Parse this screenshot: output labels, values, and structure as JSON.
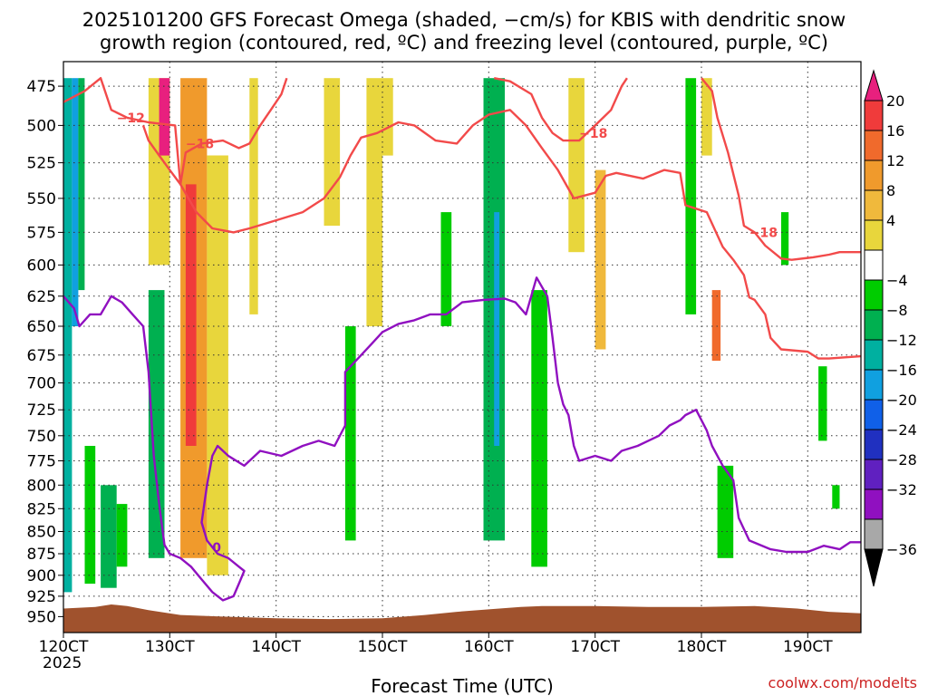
{
  "chart_data": {
    "type": "heatmap",
    "title_lines": [
      "2025101200 GFS Forecast Omega (shaded, −cm/s) for KBIS with dendritic snow",
      "growth region (contoured, red, ºC) and freezing level (contoured, purple, ºC)"
    ],
    "xlabel": "Forecast Time (UTC)",
    "x_ticks": [
      {
        "day": 120,
        "label": "120CT",
        "sub": "2025"
      },
      {
        "day": 130,
        "label": "130CT",
        "sub": ""
      },
      {
        "day": 140,
        "label": "140CT",
        "sub": ""
      },
      {
        "day": 150,
        "label": "150CT",
        "sub": ""
      },
      {
        "day": 160,
        "label": "160CT",
        "sub": ""
      },
      {
        "day": 170,
        "label": "170CT",
        "sub": ""
      },
      {
        "day": 180,
        "label": "180CT",
        "sub": ""
      },
      {
        "day": 190,
        "label": "190CT",
        "sub": ""
      }
    ],
    "xlim_days": [
      120,
      195
    ],
    "y_ticks": [
      475,
      500,
      525,
      550,
      575,
      600,
      625,
      650,
      675,
      700,
      725,
      750,
      775,
      800,
      825,
      850,
      875,
      900,
      925,
      950
    ],
    "ylim_hpa": [
      460,
      970
    ],
    "grid": "dotted",
    "colorbar": {
      "labels": [
        "20",
        "16",
        "12",
        "8",
        "4",
        "−4",
        "−8",
        "−12",
        "−16",
        "−20",
        "−24",
        "−28",
        "−32",
        "−36"
      ],
      "colors": [
        "#e8207e",
        "#f03b3b",
        "#f06a2c",
        "#f09a2c",
        "#f0b93c",
        "#e8d63c",
        "#ffffff",
        "#00cc00",
        "#00b050",
        "#00b0a0",
        "#10a0e0",
        "#1060e8",
        "#2030c0",
        "#6020c0",
        "#9010c0",
        "#a8a8a8",
        "#000000"
      ]
    },
    "omega_cells": [
      {
        "t0": 120.0,
        "t1": 120.8,
        "p0": 470,
        "p1": 920,
        "c": "#00b0a0"
      },
      {
        "t0": 120.8,
        "t1": 121.4,
        "p0": 470,
        "p1": 650,
        "c": "#10a0e0"
      },
      {
        "t0": 121.4,
        "t1": 122.0,
        "p0": 470,
        "p1": 620,
        "c": "#00b050"
      },
      {
        "t0": 122.0,
        "t1": 123.0,
        "p0": 760,
        "p1": 910,
        "c": "#00cc00"
      },
      {
        "t0": 123.5,
        "t1": 125.0,
        "p0": 800,
        "p1": 915,
        "c": "#00b050"
      },
      {
        "t0": 125.0,
        "t1": 126.0,
        "p0": 820,
        "p1": 890,
        "c": "#00cc00"
      },
      {
        "t0": 128.0,
        "t1": 129.5,
        "p0": 620,
        "p1": 880,
        "c": "#00b050"
      },
      {
        "t0": 131.0,
        "t1": 133.5,
        "p0": 470,
        "p1": 880,
        "c": "#f09a2c"
      },
      {
        "t0": 131.5,
        "t1": 132.5,
        "p0": 540,
        "p1": 760,
        "c": "#f03b3b"
      },
      {
        "t0": 133.5,
        "t1": 135.5,
        "p0": 520,
        "p1": 900,
        "c": "#e8d63c"
      },
      {
        "t0": 128.0,
        "t1": 130.0,
        "p0": 470,
        "p1": 600,
        "c": "#e8d63c"
      },
      {
        "t0": 129.0,
        "t1": 130.0,
        "p0": 470,
        "p1": 520,
        "c": "#e8207e"
      },
      {
        "t0": 137.5,
        "t1": 138.3,
        "p0": 470,
        "p1": 640,
        "c": "#e8d63c"
      },
      {
        "t0": 144.5,
        "t1": 146.0,
        "p0": 470,
        "p1": 570,
        "c": "#e8d63c"
      },
      {
        "t0": 146.5,
        "t1": 147.5,
        "p0": 650,
        "p1": 860,
        "c": "#00cc00"
      },
      {
        "t0": 148.5,
        "t1": 150.0,
        "p0": 470,
        "p1": 650,
        "c": "#e8d63c"
      },
      {
        "t0": 150.0,
        "t1": 151.0,
        "p0": 470,
        "p1": 520,
        "c": "#e8d63c"
      },
      {
        "t0": 155.5,
        "t1": 156.5,
        "p0": 560,
        "p1": 650,
        "c": "#00cc00"
      },
      {
        "t0": 159.5,
        "t1": 161.5,
        "p0": 470,
        "p1": 860,
        "c": "#00b050"
      },
      {
        "t0": 160.5,
        "t1": 161.0,
        "p0": 560,
        "p1": 760,
        "c": "#10a0e0"
      },
      {
        "t0": 164.0,
        "t1": 165.5,
        "p0": 620,
        "p1": 890,
        "c": "#00cc00"
      },
      {
        "t0": 167.5,
        "t1": 169.0,
        "p0": 470,
        "p1": 590,
        "c": "#e8d63c"
      },
      {
        "t0": 170.0,
        "t1": 171.0,
        "p0": 530,
        "p1": 670,
        "c": "#f0b93c"
      },
      {
        "t0": 178.5,
        "t1": 179.5,
        "p0": 470,
        "p1": 640,
        "c": "#00cc00"
      },
      {
        "t0": 180.0,
        "t1": 181.0,
        "p0": 470,
        "p1": 520,
        "c": "#e8d63c"
      },
      {
        "t0": 181.0,
        "t1": 181.8,
        "p0": 620,
        "p1": 680,
        "c": "#f06a2c"
      },
      {
        "t0": 181.5,
        "t1": 183.0,
        "p0": 780,
        "p1": 880,
        "c": "#00cc00"
      },
      {
        "t0": 187.5,
        "t1": 188.2,
        "p0": 560,
        "p1": 600,
        "c": "#00cc00"
      },
      {
        "t0": 191.0,
        "t1": 191.8,
        "p0": 685,
        "p1": 755,
        "c": "#00cc00"
      },
      {
        "t0": 192.3,
        "t1": 193.0,
        "p0": 800,
        "p1": 825,
        "c": "#00cc00"
      }
    ],
    "dgz_contours": [
      {
        "label": "−12",
        "label_at": [
          125.0,
          495
        ],
        "points": [
          [
            120.0,
            485
          ],
          [
            122.0,
            478
          ],
          [
            123.5,
            470
          ],
          [
            124.5,
            490
          ],
          [
            126.0,
            495
          ],
          [
            128.0,
            498
          ],
          [
            130.5,
            500
          ],
          [
            131.0,
            540
          ],
          [
            132.5,
            560
          ],
          [
            134.0,
            572
          ],
          [
            136.0,
            575
          ],
          [
            137.5,
            572
          ],
          [
            140.0,
            566
          ],
          [
            142.5,
            560
          ],
          [
            144.5,
            550
          ],
          [
            146.0,
            535
          ],
          [
            147.0,
            520
          ],
          [
            148.0,
            508
          ],
          [
            149.5,
            505
          ],
          [
            151.5,
            498
          ],
          [
            153.0,
            500
          ],
          [
            155.0,
            510
          ],
          [
            157.0,
            512
          ],
          [
            158.5,
            500
          ],
          [
            160.0,
            493
          ],
          [
            162.0,
            490
          ],
          [
            163.5,
            500
          ],
          [
            165.0,
            515
          ],
          [
            166.5,
            530
          ],
          [
            168.0,
            550
          ],
          [
            170.0,
            546
          ],
          [
            171.0,
            534
          ],
          [
            172.0,
            532
          ],
          [
            174.5,
            536
          ],
          [
            176.5,
            530
          ],
          [
            178.0,
            532
          ],
          [
            178.5,
            555
          ],
          [
            180.5,
            560
          ],
          [
            182.0,
            586
          ],
          [
            183.0,
            596
          ],
          [
            184.0,
            608
          ],
          [
            184.5,
            626
          ],
          [
            185.0,
            628
          ],
          [
            186.0,
            640
          ],
          [
            186.5,
            660
          ],
          [
            187.5,
            670
          ],
          [
            190.0,
            672
          ],
          [
            191.0,
            678
          ],
          [
            192.0,
            678
          ],
          [
            195.0,
            676
          ]
        ]
      },
      {
        "label": "−18",
        "label_at": [
          131.5,
          512
        ],
        "points": [
          [
            127.5,
            500
          ],
          [
            128.0,
            510
          ],
          [
            129.0,
            520
          ],
          [
            130.0,
            530
          ],
          [
            131.0,
            540
          ],
          [
            131.5,
            518
          ],
          [
            133.0,
            512
          ],
          [
            135.0,
            510
          ],
          [
            136.5,
            515
          ],
          [
            137.5,
            512
          ],
          [
            138.5,
            500
          ],
          [
            139.5,
            490
          ],
          [
            140.5,
            480
          ],
          [
            141.0,
            470
          ]
        ]
      },
      {
        "label": "−18",
        "label_at": [
          168.5,
          505
        ],
        "points": [
          [
            160.5,
            470
          ],
          [
            162.0,
            472
          ],
          [
            164.0,
            480
          ],
          [
            165.0,
            495
          ],
          [
            166.0,
            505
          ],
          [
            167.0,
            510
          ],
          [
            168.5,
            510
          ],
          [
            170.0,
            500
          ],
          [
            171.5,
            490
          ],
          [
            172.5,
            475
          ],
          [
            173.0,
            470
          ]
        ]
      },
      {
        "label": "−18",
        "label_at": [
          184.5,
          575
        ],
        "points": [
          [
            180.0,
            470
          ],
          [
            181.0,
            478
          ],
          [
            181.5,
            495
          ],
          [
            182.5,
            518
          ],
          [
            183.5,
            548
          ],
          [
            184.0,
            570
          ],
          [
            185.0,
            575
          ],
          [
            186.0,
            585
          ],
          [
            187.5,
            595
          ],
          [
            188.5,
            596
          ],
          [
            190.5,
            594
          ],
          [
            192.0,
            592
          ],
          [
            193.0,
            590
          ],
          [
            195.0,
            590
          ]
        ]
      }
    ],
    "fzl_contours": [
      {
        "label": "0",
        "label_at": [
          134.0,
          868
        ],
        "points": [
          [
            120.0,
            625
          ],
          [
            121.0,
            635
          ],
          [
            121.5,
            650
          ],
          [
            122.5,
            640
          ],
          [
            123.5,
            640
          ],
          [
            124.5,
            625
          ],
          [
            125.5,
            630
          ],
          [
            126.5,
            640
          ],
          [
            127.5,
            650
          ],
          [
            128.0,
            690
          ],
          [
            128.5,
            770
          ],
          [
            129.0,
            820
          ],
          [
            129.5,
            865
          ],
          [
            130.0,
            875
          ],
          [
            131.0,
            880
          ],
          [
            132.0,
            890
          ],
          [
            133.0,
            905
          ],
          [
            134.0,
            920
          ],
          [
            135.0,
            930
          ],
          [
            136.0,
            925
          ],
          [
            136.5,
            910
          ],
          [
            137.0,
            895
          ],
          [
            136.5,
            890
          ],
          [
            135.5,
            880
          ],
          [
            134.5,
            875
          ],
          [
            133.5,
            860
          ],
          [
            133.0,
            840
          ],
          [
            133.5,
            800
          ],
          [
            134.0,
            770
          ],
          [
            134.5,
            760
          ],
          [
            135.5,
            770
          ],
          [
            137.0,
            780
          ],
          [
            138.5,
            765
          ],
          [
            140.5,
            770
          ],
          [
            142.5,
            760
          ],
          [
            144.0,
            755
          ],
          [
            145.5,
            760
          ],
          [
            146.5,
            740
          ],
          [
            146.5,
            690
          ],
          [
            147.5,
            680
          ],
          [
            149.0,
            665
          ],
          [
            150.0,
            655
          ],
          [
            151.5,
            648
          ],
          [
            153.0,
            645
          ],
          [
            154.5,
            640
          ],
          [
            156.0,
            640
          ],
          [
            157.5,
            630
          ],
          [
            159.5,
            628
          ],
          [
            161.5,
            627
          ],
          [
            162.5,
            630
          ],
          [
            163.5,
            640
          ],
          [
            164.5,
            610
          ],
          [
            165.5,
            625
          ],
          [
            166.0,
            660
          ],
          [
            166.5,
            700
          ],
          [
            167.0,
            720
          ],
          [
            167.5,
            730
          ],
          [
            168.0,
            760
          ],
          [
            168.5,
            775
          ],
          [
            170.0,
            770
          ],
          [
            171.5,
            775
          ],
          [
            172.5,
            765
          ],
          [
            174.0,
            760
          ],
          [
            175.0,
            755
          ],
          [
            176.0,
            750
          ],
          [
            177.0,
            740
          ],
          [
            178.0,
            735
          ],
          [
            178.5,
            730
          ],
          [
            179.5,
            725
          ],
          [
            180.5,
            745
          ],
          [
            181.0,
            760
          ],
          [
            182.0,
            780
          ],
          [
            183.0,
            795
          ],
          [
            183.5,
            835
          ],
          [
            184.5,
            860
          ],
          [
            186.5,
            870
          ],
          [
            188.0,
            873
          ],
          [
            190.0,
            873
          ],
          [
            191.5,
            866
          ],
          [
            193.0,
            870
          ],
          [
            194.0,
            862
          ],
          [
            195.0,
            862
          ]
        ]
      }
    ],
    "terrain_color": "#a0522d"
  },
  "credit": "coolwx.com/modelts"
}
